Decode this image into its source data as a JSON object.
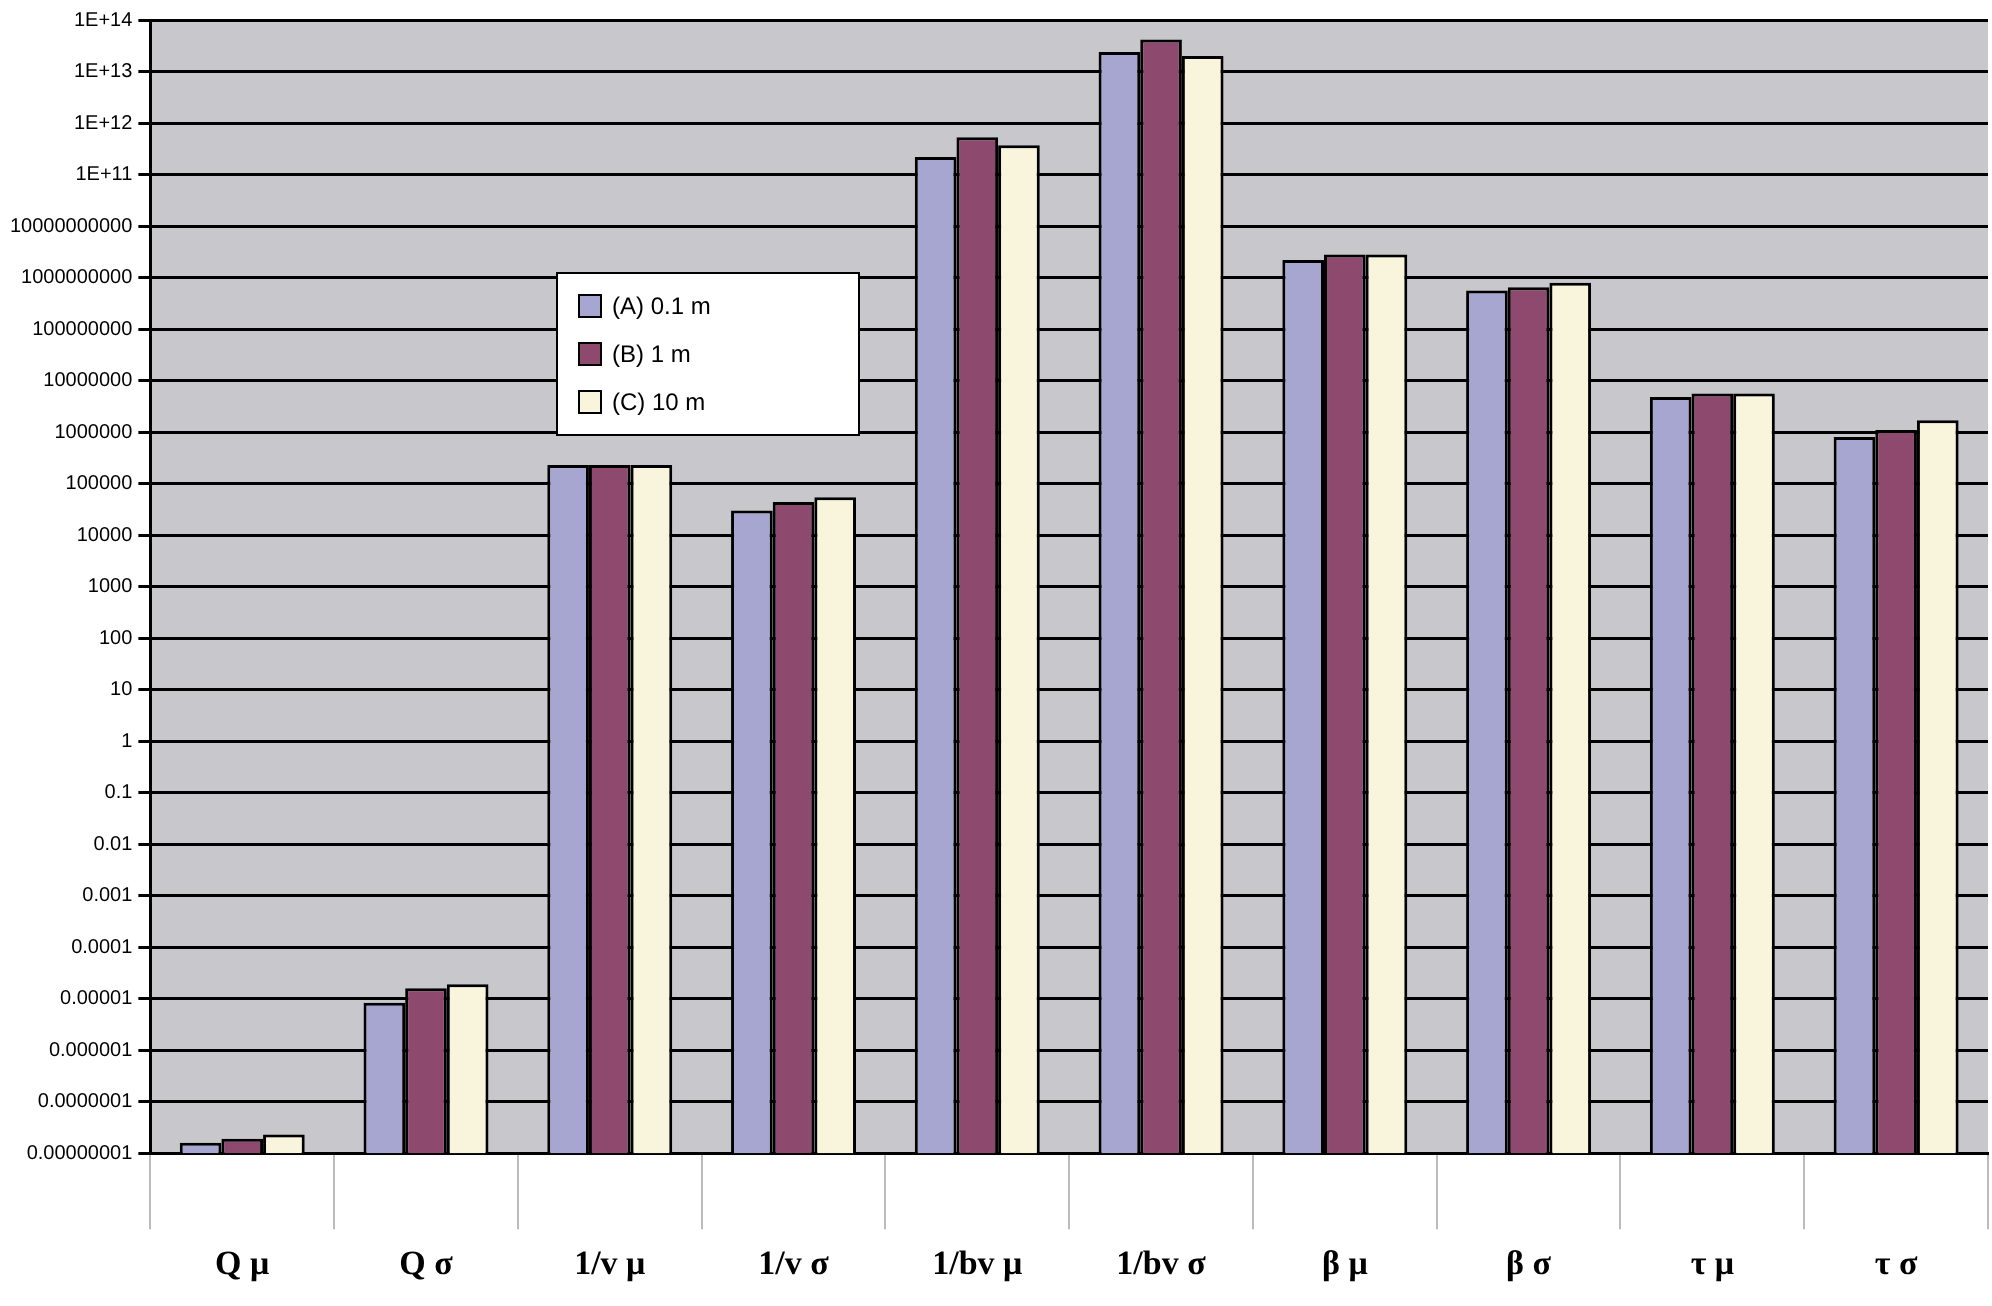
{
  "chart_data": {
    "type": "bar",
    "log": true,
    "grid": "y",
    "legend": "top left",
    "categories": [
      "Q μ",
      "Q σ",
      "1/v μ",
      "1/v σ",
      "1/bv μ",
      "1/bv σ",
      "β μ",
      "β σ",
      "τ μ",
      "τ σ"
    ],
    "series": [
      {
        "name": "(A) 0.1 m",
        "color": "#a6a6d0",
        "values": [
          1.6e-08,
          8.3e-06,
          230000.0,
          30000.0,
          220000000000.0,
          24000000000000.0,
          2200000000.0,
          560000000.0,
          4800000.0,
          800000.0
        ]
      },
      {
        "name": "(B) 1 m",
        "color": "#8e4a6e",
        "values": [
          1.9e-08,
          1.6e-05,
          230000.0,
          44000.0,
          530000000000.0,
          42000000000000.0,
          2800000000.0,
          650000000.0,
          5600000.0,
          1100000.0
        ]
      },
      {
        "name": "(C) 10 m",
        "color": "#f8f5dc",
        "values": [
          2.3e-08,
          1.9e-05,
          230000.0,
          54000.0,
          370000000000.0,
          20000000000000.0,
          2800000000.0,
          790000000.0,
          5600000.0,
          1700000.0
        ]
      }
    ],
    "ylim": [
      1e-08,
      100000000000000.0
    ],
    "yticks": [
      {
        "value": 1e-08,
        "label": "0.00000001"
      },
      {
        "value": 1e-07,
        "label": "0.0000001"
      },
      {
        "value": 1e-06,
        "label": "0.000001"
      },
      {
        "value": 1e-05,
        "label": "0.00001"
      },
      {
        "value": 0.0001,
        "label": "0.0001"
      },
      0.001,
      0.01,
      0.1,
      1,
      10,
      100,
      1000,
      10000,
      100000,
      1000000,
      10000000,
      100000000,
      1000000000,
      10000000000,
      {
        "value": 100000000000.0,
        "label": "1E+11"
      },
      {
        "value": 1000000000000.0,
        "label": "1E+12"
      },
      {
        "value": 10000000000000.0,
        "label": "1E+13"
      },
      {
        "value": 100000000000000.0,
        "label": "1E+14"
      }
    ]
  }
}
